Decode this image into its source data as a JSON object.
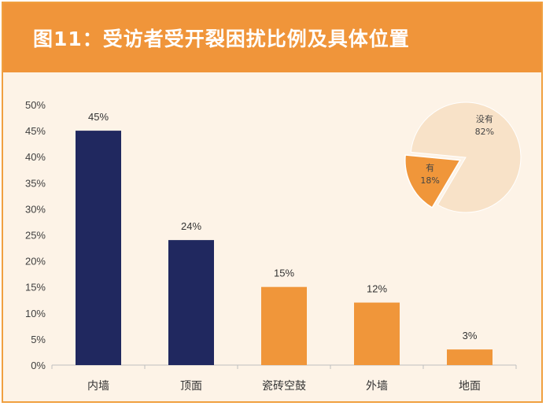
{
  "title": "图11：受访者受开裂困扰比例及具体位置",
  "colors": {
    "background": "#fdf3e7",
    "title_bar": "#f0953a",
    "navy": "#20285f",
    "orange": "#f0963a",
    "pie_light": "#f8e2c8",
    "pie_orange": "#f0963a"
  },
  "chart_data": [
    {
      "type": "bar",
      "categories": [
        "内墙",
        "顶面",
        "瓷砖空鼓",
        "外墙",
        "地面"
      ],
      "values": [
        45,
        24,
        15,
        12,
        3
      ],
      "data_labels": [
        "45%",
        "24%",
        "15%",
        "12%",
        "3%"
      ],
      "bar_colors": [
        "#20285f",
        "#20285f",
        "#f0963a",
        "#f0963a",
        "#f0963a"
      ],
      "yticks": [
        "0%",
        "5%",
        "10%",
        "15%",
        "20%",
        "25%",
        "30%",
        "35%",
        "40%",
        "45%",
        "50%"
      ],
      "ylim": [
        0,
        50
      ],
      "grid": false
    },
    {
      "type": "pie",
      "slices": [
        {
          "name": "没有",
          "label": "82%",
          "value": 82,
          "color": "#f8e2c8",
          "exploded": false
        },
        {
          "name": "有",
          "label": "18%",
          "value": 18,
          "color": "#f0963a",
          "exploded": true
        }
      ]
    }
  ]
}
